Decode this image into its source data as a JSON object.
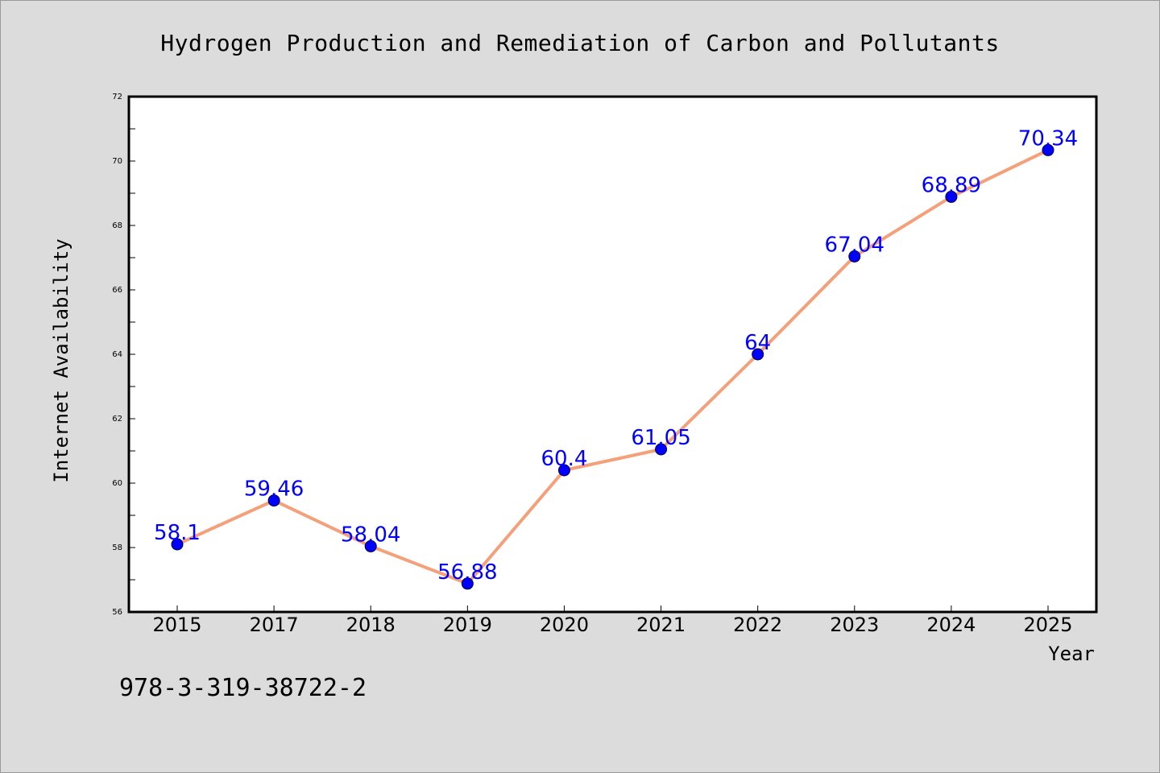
{
  "chart_data": {
    "type": "line",
    "title": "Hydrogen Production and Remediation of Carbon and Pollutants",
    "xlabel": "Year",
    "ylabel": "Internet Availability",
    "categories": [
      "2015",
      "2017",
      "2018",
      "2019",
      "2020",
      "2021",
      "2022",
      "2023",
      "2024",
      "2025"
    ],
    "series": [
      {
        "values": [
          58.1,
          59.46,
          58.04,
          56.88,
          60.4,
          61.05,
          64,
          67.04,
          68.89,
          70.34
        ],
        "labels": [
          "58.1",
          "59.46",
          "58.04",
          "56.88",
          "60.4",
          "61.05",
          "64",
          "67.04",
          "68.89",
          "70.34"
        ],
        "line_color": "#f4a07a",
        "marker_color": "#0000ff"
      }
    ],
    "ylim": [
      56,
      72
    ],
    "yticks": [
      "56",
      "58",
      "60",
      "62",
      "64",
      "66",
      "68",
      "70",
      "72"
    ],
    "grid": false,
    "legend": "none"
  },
  "footnote": "978-3-319-38722-2"
}
